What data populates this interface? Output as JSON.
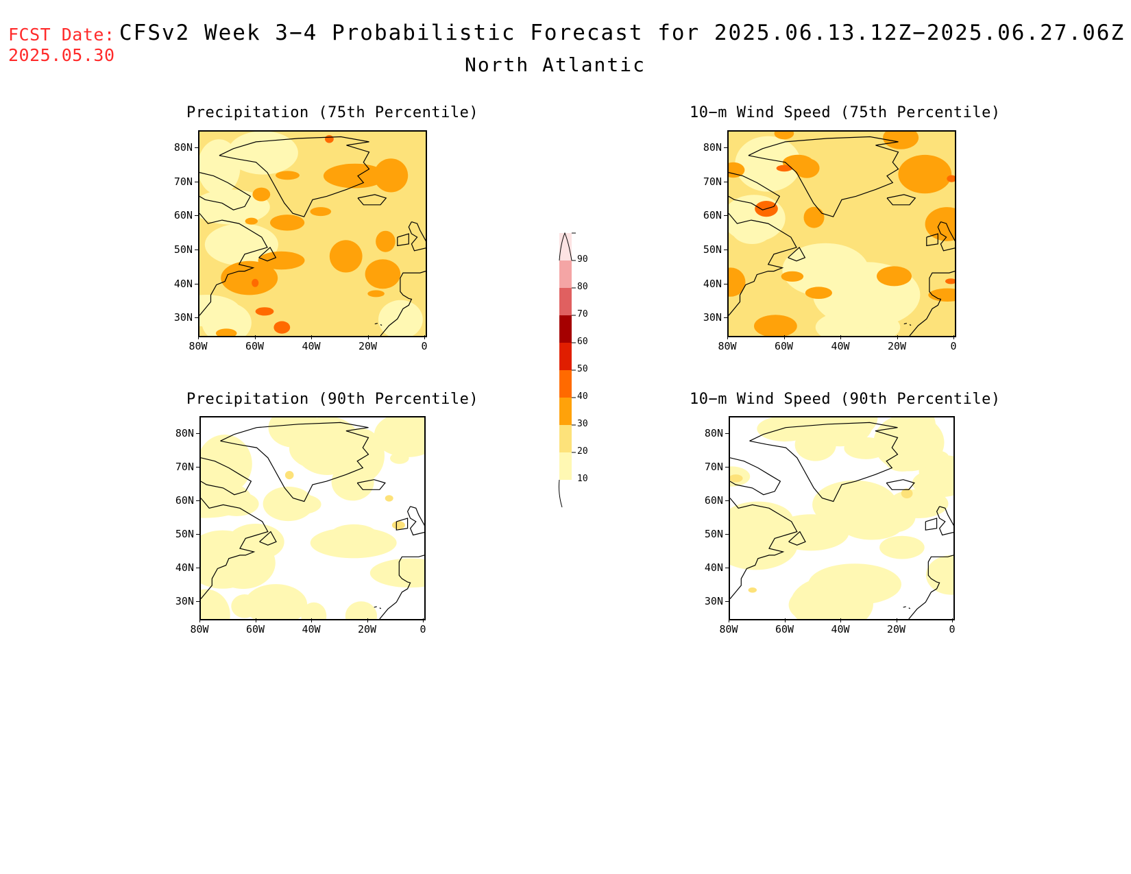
{
  "header": {
    "fcst_label": "FCST Date:",
    "fcst_date": "2025.05.30",
    "title": "CFSv2 Week 3−4 Probabilistic Forecast for 2025.06.13.12Z−2025.06.27.06Z",
    "region": "North Atlantic"
  },
  "panels": [
    {
      "title": "Precipitation (75th Percentile)",
      "level": "high"
    },
    {
      "title": "10−m Wind Speed (75th Percentile)",
      "level": "high"
    },
    {
      "title": "Precipitation (90th Percentile)",
      "level": "low"
    },
    {
      "title": "10−m Wind Speed (90th Percentile)",
      "level": "low"
    }
  ],
  "axes": {
    "lat_ticks": [
      "80N",
      "70N",
      "60N",
      "50N",
      "40N",
      "30N"
    ],
    "lon_ticks": [
      "80W",
      "60W",
      "40W",
      "20W",
      "0"
    ]
  },
  "colorbar": {
    "labels": [
      "10",
      "20",
      "30",
      "40",
      "50",
      "60",
      "70",
      "80",
      "90"
    ],
    "colors": [
      "#fff8b3",
      "#fde27a",
      "#ffa20a",
      "#ff6a00",
      "#e01e00",
      "#a50000",
      "#e06060",
      "#f4a5a5",
      "#fde3e3"
    ]
  }
}
